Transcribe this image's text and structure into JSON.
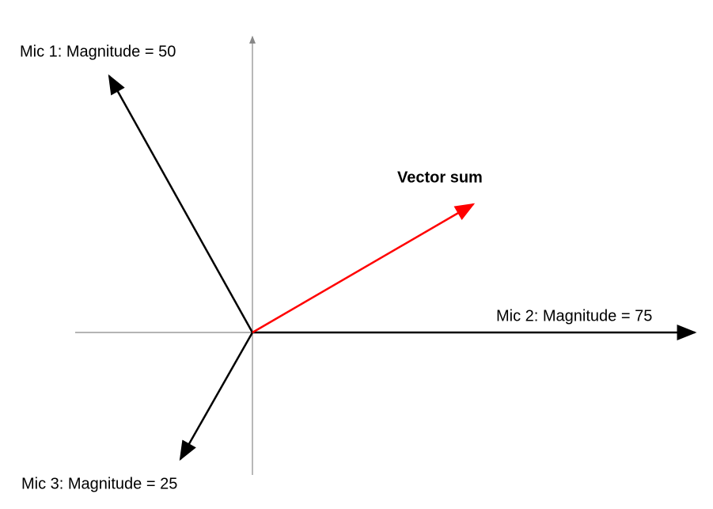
{
  "labels": {
    "mic1": "Mic 1: Magnitude = 50",
    "mic2": "Mic 2: Magnitude = 75",
    "mic3": "Mic 3: Magnitude = 25",
    "sum": "Vector sum"
  }
}
